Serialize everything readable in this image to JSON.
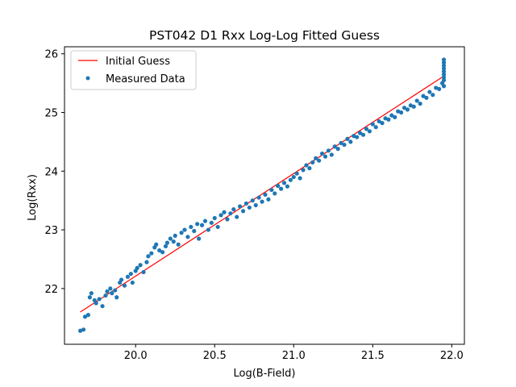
{
  "chart_data": {
    "type": "scatter",
    "title": "PST042 D1 Rxx Log-Log Fitted Guess",
    "xlabel": "Log(B-Field)",
    "ylabel": "Log(Rxx)",
    "xlim": [
      19.55,
      22.08
    ],
    "ylim": [
      21.05,
      26.12
    ],
    "xticks": [
      20.0,
      20.5,
      21.0,
      21.5,
      22.0
    ],
    "yticks": [
      22,
      23,
      24,
      25,
      26
    ],
    "xtick_labels": [
      "20.0",
      "20.5",
      "21.0",
      "21.5",
      "22.0"
    ],
    "ytick_labels": [
      "22",
      "23",
      "24",
      "25",
      "26"
    ],
    "grid": false,
    "legend_position": "upper-left",
    "series": [
      {
        "name": "Initial Guess",
        "kind": "line",
        "color": "#ff0000",
        "x": [
          19.65,
          21.95
        ],
        "y": [
          21.6,
          25.62
        ]
      },
      {
        "name": "Measured Data",
        "kind": "scatter",
        "color": "#1f77b4",
        "x": [
          19.65,
          19.67,
          19.68,
          19.7,
          19.71,
          19.72,
          19.74,
          19.75,
          19.77,
          19.79,
          19.81,
          19.82,
          19.84,
          19.85,
          19.87,
          19.88,
          19.9,
          19.91,
          19.93,
          19.95,
          19.97,
          19.98,
          20.0,
          20.01,
          20.03,
          20.05,
          20.07,
          20.08,
          20.1,
          20.12,
          20.13,
          20.15,
          20.17,
          20.19,
          20.2,
          20.22,
          20.24,
          20.25,
          20.27,
          20.29,
          20.31,
          20.33,
          20.35,
          20.37,
          20.39,
          20.4,
          20.42,
          20.44,
          20.46,
          20.48,
          20.5,
          20.52,
          20.54,
          20.56,
          20.58,
          20.6,
          20.62,
          20.64,
          20.66,
          20.68,
          20.7,
          20.72,
          20.74,
          20.76,
          20.78,
          20.8,
          20.82,
          20.84,
          20.86,
          20.88,
          20.9,
          20.92,
          20.94,
          20.96,
          20.98,
          21.0,
          21.02,
          21.04,
          21.06,
          21.08,
          21.1,
          21.12,
          21.14,
          21.16,
          21.18,
          21.2,
          21.22,
          21.24,
          21.26,
          21.28,
          21.3,
          21.32,
          21.34,
          21.36,
          21.38,
          21.4,
          21.42,
          21.44,
          21.46,
          21.48,
          21.5,
          21.52,
          21.54,
          21.56,
          21.58,
          21.6,
          21.62,
          21.64,
          21.66,
          21.68,
          21.7,
          21.72,
          21.74,
          21.76,
          21.78,
          21.8,
          21.82,
          21.84,
          21.86,
          21.88,
          21.9,
          21.92,
          21.94,
          21.95,
          21.95,
          21.95,
          21.95,
          21.95,
          21.95,
          21.95,
          21.95,
          21.95
        ],
        "y": [
          21.28,
          21.3,
          21.52,
          21.55,
          21.85,
          21.92,
          21.8,
          21.75,
          21.82,
          21.7,
          21.88,
          21.95,
          22.0,
          21.92,
          21.97,
          21.85,
          22.1,
          22.15,
          22.05,
          22.2,
          22.25,
          22.1,
          22.3,
          22.35,
          22.4,
          22.28,
          22.45,
          22.55,
          22.6,
          22.7,
          22.75,
          22.65,
          22.62,
          22.72,
          22.78,
          22.85,
          22.8,
          22.9,
          22.75,
          22.95,
          23.0,
          22.88,
          23.05,
          22.98,
          23.1,
          22.85,
          23.08,
          23.15,
          23.0,
          23.12,
          23.2,
          23.05,
          23.25,
          23.3,
          23.18,
          23.28,
          23.35,
          23.22,
          23.4,
          23.32,
          23.45,
          23.38,
          23.5,
          23.42,
          23.55,
          23.48,
          23.6,
          23.52,
          23.68,
          23.62,
          23.75,
          23.7,
          23.8,
          23.74,
          23.85,
          23.9,
          23.96,
          23.88,
          24.02,
          24.1,
          24.05,
          24.15,
          24.22,
          24.18,
          24.3,
          24.25,
          24.35,
          24.28,
          24.42,
          24.38,
          24.48,
          24.45,
          24.55,
          24.5,
          24.6,
          24.58,
          24.65,
          24.62,
          24.72,
          24.68,
          24.8,
          24.75,
          24.85,
          24.82,
          24.9,
          24.88,
          24.95,
          24.92,
          25.02,
          25.0,
          25.08,
          25.05,
          25.12,
          25.1,
          25.2,
          25.15,
          25.28,
          25.25,
          25.35,
          25.3,
          25.42,
          25.4,
          25.5,
          25.45,
          25.55,
          25.6,
          25.65,
          25.7,
          25.75,
          25.8,
          25.85,
          25.9
        ]
      }
    ]
  }
}
